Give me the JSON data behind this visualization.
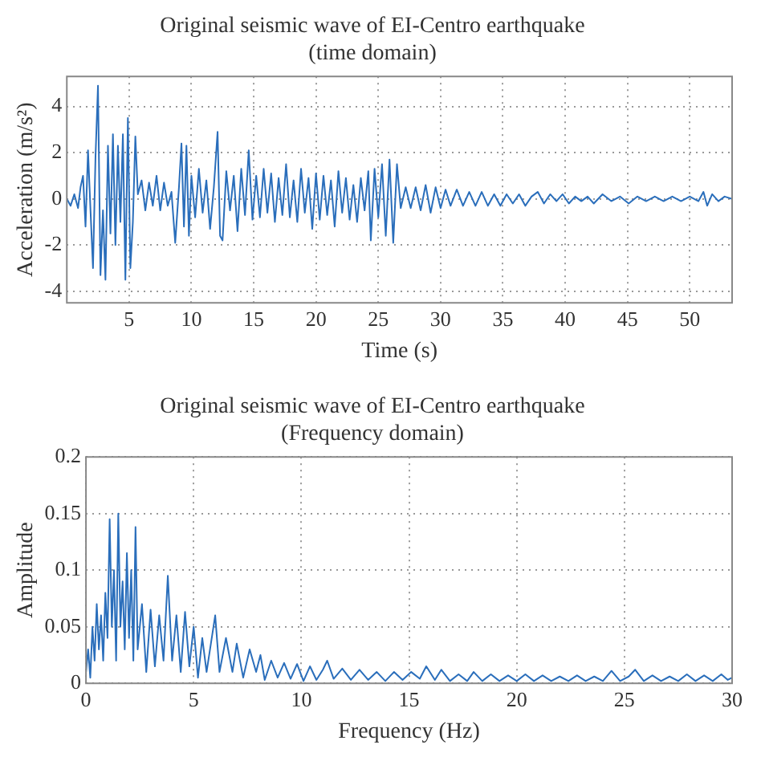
{
  "chart_data": [
    {
      "type": "line",
      "title": "Original seismic wave of EI-Centro earthquake",
      "subtitle": "(time domain)",
      "xlabel": "Time (s)",
      "ylabel": "Acceleration (m/s²)",
      "x": [
        0,
        0.3,
        0.6,
        0.9,
        1.1,
        1.3,
        1.5,
        1.7,
        1.9,
        2.1,
        2.3,
        2.5,
        2.7,
        2.9,
        3.1,
        3.3,
        3.5,
        3.7,
        3.9,
        4.1,
        4.3,
        4.5,
        4.7,
        4.9,
        5.1,
        5.3,
        5.5,
        5.7,
        6,
        6.3,
        6.6,
        6.9,
        7.2,
        7.5,
        7.8,
        8.1,
        8.4,
        8.7,
        9,
        9.2,
        9.4,
        9.6,
        9.8,
        10,
        10.3,
        10.6,
        10.9,
        11.2,
        11.5,
        11.8,
        12.1,
        12.3,
        12.5,
        12.8,
        13.1,
        13.4,
        13.7,
        14,
        14.3,
        14.6,
        14.9,
        15.2,
        15.5,
        15.8,
        16.1,
        16.4,
        16.7,
        17,
        17.3,
        17.6,
        17.9,
        18.2,
        18.5,
        18.8,
        19.1,
        19.4,
        19.7,
        20,
        20.3,
        20.6,
        20.9,
        21.2,
        21.5,
        21.8,
        22.1,
        22.4,
        22.7,
        23,
        23.3,
        23.6,
        23.9,
        24.2,
        24.4,
        24.7,
        25,
        25.3,
        25.6,
        25.9,
        26.2,
        26.5,
        26.8,
        27.2,
        27.6,
        28,
        28.4,
        28.8,
        29.2,
        29.6,
        30,
        30.4,
        30.8,
        31.3,
        31.8,
        32.3,
        32.8,
        33.3,
        33.8,
        34.3,
        34.8,
        35.3,
        35.8,
        36.3,
        36.8,
        37.3,
        37.8,
        38.3,
        38.8,
        39.3,
        39.8,
        40.3,
        40.8,
        41.3,
        41.8,
        42.3,
        43,
        43.7,
        44.4,
        45.1,
        45.8,
        46.5,
        47.2,
        47.9,
        48.6,
        49.3,
        50,
        50.7,
        51.1,
        51.4,
        51.8,
        52.3,
        52.8,
        53.4
      ],
      "series": [
        {
          "color": "#2a6ebb",
          "values": [
            0,
            -0.3,
            0.2,
            -0.4,
            0.5,
            1,
            -1.2,
            2.1,
            -0.5,
            -3,
            1.8,
            4.9,
            -3.3,
            -0.5,
            -3.5,
            2.3,
            -1.5,
            2.8,
            -2,
            2.3,
            -1,
            2.8,
            -3.5,
            3.5,
            -3,
            -1,
            2.7,
            0.2,
            0.8,
            -0.5,
            0.7,
            -0.3,
            1,
            -0.5,
            0.7,
            -0.3,
            0.3,
            -1.9,
            0.5,
            2.4,
            -1.2,
            2.3,
            -1.6,
            1,
            -0.8,
            1.3,
            -0.6,
            0.8,
            -1.3,
            0.5,
            2.9,
            -1.6,
            -1.8,
            1.2,
            -0.5,
            1,
            -1.4,
            1.3,
            -0.7,
            2.1,
            -0.9,
            1,
            -0.8,
            1.3,
            -0.6,
            1.1,
            -1,
            0.9,
            -0.7,
            1.5,
            -0.8,
            0.8,
            -1,
            1.3,
            -0.6,
            0.9,
            -1.3,
            1.1,
            -0.9,
            1,
            -0.7,
            0.8,
            -1.2,
            1.2,
            -0.6,
            0.9,
            -0.9,
            0.6,
            -1,
            0.9,
            -0.5,
            1.2,
            -1.8,
            1.3,
            -0.8,
            1.5,
            -1.6,
            1.7,
            -1.9,
            1.5,
            -0.4,
            0.5,
            -0.4,
            0.5,
            -0.5,
            0.6,
            -0.6,
            0.5,
            -0.4,
            0.4,
            -0.3,
            0.4,
            -0.3,
            0.3,
            -0.3,
            0.3,
            -0.3,
            0.2,
            -0.3,
            0.2,
            -0.2,
            0.2,
            -0.3,
            0.1,
            0.3,
            -0.2,
            0.2,
            -0.1,
            0.2,
            -0.2,
            0.1,
            -0.1,
            0.1,
            -0.2,
            0.2,
            -0.1,
            0.1,
            -0.2,
            0.1,
            -0.1,
            0.1,
            -0.1,
            0.1,
            -0.1,
            0.1,
            -0.1,
            0.3,
            -0.3,
            0.2,
            -0.1,
            0.1,
            0
          ]
        }
      ],
      "xlim": [
        0,
        53.4
      ],
      "xticks": [
        5,
        10,
        15,
        20,
        25,
        30,
        35,
        40,
        45,
        50
      ],
      "ylim": [
        -4.5,
        5.3
      ],
      "yticks": [
        -4,
        -2,
        0,
        2,
        4
      ],
      "grid": true,
      "marker": "none",
      "legend": false
    },
    {
      "type": "line",
      "title": "Original seismic wave of EI-Centro earthquake",
      "subtitle": "(Frequency domain)",
      "xlabel": "Frequency (Hz)",
      "ylabel": "Amplitude",
      "x": [
        0,
        0.1,
        0.2,
        0.3,
        0.4,
        0.5,
        0.6,
        0.7,
        0.8,
        0.9,
        1,
        1.1,
        1.2,
        1.3,
        1.4,
        1.5,
        1.6,
        1.7,
        1.8,
        1.9,
        2,
        2.1,
        2.2,
        2.3,
        2.4,
        2.6,
        2.8,
        3,
        3.2,
        3.4,
        3.6,
        3.8,
        4,
        4.2,
        4.4,
        4.6,
        4.8,
        5,
        5.2,
        5.4,
        5.6,
        5.8,
        6,
        6.2,
        6.5,
        6.8,
        7,
        7.3,
        7.6,
        7.9,
        8.1,
        8.3,
        8.6,
        8.9,
        9.2,
        9.5,
        9.8,
        10.1,
        10.4,
        10.7,
        11,
        11.2,
        11.5,
        11.9,
        12.3,
        12.7,
        13.1,
        13.5,
        13.9,
        14.3,
        14.7,
        15.1,
        15.5,
        15.8,
        16.2,
        16.5,
        16.9,
        17.3,
        17.7,
        18,
        18.4,
        18.8,
        19.2,
        19.6,
        20,
        20.4,
        20.8,
        21.2,
        21.6,
        22,
        22.4,
        22.8,
        23.2,
        23.6,
        24,
        24.4,
        24.8,
        25.2,
        25.5,
        25.9,
        26.3,
        26.7,
        27.1,
        27.5,
        27.9,
        28.3,
        28.7,
        29.1,
        29.5,
        29.8,
        30
      ],
      "series": [
        {
          "color": "#2a6ebb",
          "values": [
            0.01,
            0.03,
            0.005,
            0.05,
            0.02,
            0.07,
            0.03,
            0.06,
            0.02,
            0.08,
            0.04,
            0.145,
            0.05,
            0.1,
            0.02,
            0.15,
            0.05,
            0.09,
            0.03,
            0.115,
            0.04,
            0.1,
            0.02,
            0.138,
            0.03,
            0.07,
            0.01,
            0.065,
            0.015,
            0.06,
            0.02,
            0.095,
            0.02,
            0.06,
            0.01,
            0.063,
            0.015,
            0.05,
            0.005,
            0.04,
            0.01,
            0.035,
            0.06,
            0.01,
            0.04,
            0.01,
            0.035,
            0.005,
            0.03,
            0.01,
            0.025,
            0.003,
            0.02,
            0.005,
            0.018,
            0.004,
            0.017,
            0.002,
            0.015,
            0.003,
            0.012,
            0.02,
            0.004,
            0.013,
            0.003,
            0.012,
            0.003,
            0.01,
            0.002,
            0.01,
            0.003,
            0.01,
            0.004,
            0.015,
            0.003,
            0.012,
            0.002,
            0.008,
            0.002,
            0.01,
            0.002,
            0.008,
            0.002,
            0.007,
            0.002,
            0.008,
            0.002,
            0.007,
            0.002,
            0.006,
            0.002,
            0.007,
            0.002,
            0.006,
            0.002,
            0.011,
            0.002,
            0.006,
            0.012,
            0.002,
            0.007,
            0.002,
            0.006,
            0.002,
            0.008,
            0.002,
            0.007,
            0.002,
            0.008,
            0.003,
            0.005
          ]
        }
      ],
      "xlim": [
        0,
        30
      ],
      "xticks": [
        0,
        5,
        10,
        15,
        20,
        25,
        30
      ],
      "ylim": [
        0,
        0.2
      ],
      "yticks": [
        0,
        0.05,
        0.1,
        0.15,
        0.2
      ],
      "grid": true,
      "marker": "none",
      "legend": false
    }
  ]
}
